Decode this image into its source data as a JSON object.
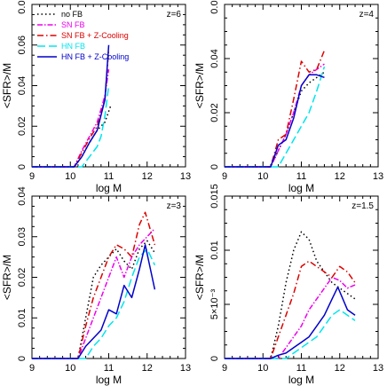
{
  "chart_data": [
    {
      "type": "line",
      "label": "z=6",
      "xlabel": "log M",
      "ylabel": "<SFR>/M",
      "xlim": [
        9,
        13
      ],
      "ylim": [
        0,
        0.08
      ],
      "xticks": [
        "9",
        "10",
        "11",
        "12",
        "13"
      ],
      "yticks": [
        {
          "v": 0,
          "t": "0"
        },
        {
          "v": 0.02,
          "t": "0.02"
        },
        {
          "v": 0.04,
          "t": "0.04"
        },
        {
          "v": 0.06,
          "t": "0.06"
        },
        {
          "v": 0.08,
          "t": "0.08"
        }
      ],
      "show_legend": true,
      "series": [
        {
          "name": "no FB",
          "points": [
            [
              9,
              0
            ],
            [
              10.1,
              0
            ],
            [
              10.3,
              0.005
            ],
            [
              10.5,
              0.012
            ],
            [
              10.7,
              0.018
            ],
            [
              10.9,
              0.022
            ],
            [
              11.05,
              0.03
            ]
          ]
        },
        {
          "name": "SN FB",
          "points": [
            [
              9,
              0
            ],
            [
              10.1,
              0
            ],
            [
              10.3,
              0.008
            ],
            [
              10.5,
              0.015
            ],
            [
              10.7,
              0.022
            ],
            [
              10.9,
              0.035
            ],
            [
              11.0,
              0.048
            ]
          ]
        },
        {
          "name": "SN FB + Z-Cooling",
          "points": [
            [
              9,
              0
            ],
            [
              10.1,
              0
            ],
            [
              10.3,
              0.007
            ],
            [
              10.5,
              0.014
            ],
            [
              10.7,
              0.02
            ],
            [
              10.9,
              0.033
            ],
            [
              11.0,
              0.058
            ]
          ]
        },
        {
          "name": "HN FB",
          "points": [
            [
              9,
              0
            ],
            [
              10.3,
              0
            ],
            [
              10.5,
              0.005
            ],
            [
              10.7,
              0.01
            ],
            [
              10.8,
              0.015
            ],
            [
              10.9,
              0.025
            ],
            [
              11.0,
              0.04
            ]
          ]
        },
        {
          "name": "HN FB + Z-Cooling",
          "points": [
            [
              9,
              0
            ],
            [
              10.1,
              0
            ],
            [
              10.3,
              0.005
            ],
            [
              10.5,
              0.012
            ],
            [
              10.7,
              0.018
            ],
            [
              10.9,
              0.033
            ],
            [
              11.0,
              0.06
            ]
          ]
        }
      ]
    },
    {
      "type": "line",
      "label": "z=4",
      "xlabel": "log M",
      "ylabel": "<SFR>/M",
      "xlim": [
        9,
        13
      ],
      "ylim": [
        0,
        0.06
      ],
      "xticks": [
        "9",
        "10",
        "11",
        "12",
        "13"
      ],
      "yticks": [
        {
          "v": 0,
          "t": "0"
        },
        {
          "v": 0.02,
          "t": "0.02"
        },
        {
          "v": 0.04,
          "t": "0.04"
        },
        {
          "v": 0.06,
          "t": "0.06"
        }
      ],
      "show_legend": false,
      "series": [
        {
          "name": "no FB",
          "points": [
            [
              9,
              0
            ],
            [
              10.2,
              0
            ],
            [
              10.4,
              0.006
            ],
            [
              10.6,
              0.012
            ],
            [
              10.8,
              0.02
            ],
            [
              11.0,
              0.028
            ],
            [
              11.2,
              0.031
            ],
            [
              11.4,
              0.033
            ],
            [
              11.6,
              0.035
            ]
          ]
        },
        {
          "name": "SN FB",
          "points": [
            [
              9,
              0
            ],
            [
              10.2,
              0
            ],
            [
              10.4,
              0.006
            ],
            [
              10.6,
              0.012
            ],
            [
              10.8,
              0.02
            ],
            [
              11.0,
              0.03
            ],
            [
              11.2,
              0.034
            ],
            [
              11.4,
              0.036
            ],
            [
              11.6,
              0.038
            ]
          ]
        },
        {
          "name": "SN FB + Z-Cooling",
          "points": [
            [
              9,
              0
            ],
            [
              10.2,
              0
            ],
            [
              10.4,
              0.01
            ],
            [
              10.6,
              0.012
            ],
            [
              10.8,
              0.025
            ],
            [
              11.0,
              0.039
            ],
            [
              11.2,
              0.035
            ],
            [
              11.4,
              0.036
            ],
            [
              11.6,
              0.043
            ]
          ]
        },
        {
          "name": "HN FB",
          "points": [
            [
              9,
              0
            ],
            [
              10.4,
              0
            ],
            [
              10.6,
              0.005
            ],
            [
              10.8,
              0.01
            ],
            [
              11.0,
              0.015
            ],
            [
              11.2,
              0.02
            ],
            [
              11.4,
              0.028
            ],
            [
              11.6,
              0.037
            ]
          ]
        },
        {
          "name": "HN FB + Z-Cooling",
          "points": [
            [
              9,
              0
            ],
            [
              10.2,
              0
            ],
            [
              10.4,
              0.008
            ],
            [
              10.6,
              0.01
            ],
            [
              10.8,
              0.018
            ],
            [
              11.0,
              0.03
            ],
            [
              11.2,
              0.034
            ],
            [
              11.4,
              0.034
            ],
            [
              11.6,
              0.033
            ]
          ]
        }
      ]
    },
    {
      "type": "line",
      "label": "z=3",
      "xlabel": "log M",
      "ylabel": "<SFR>/M",
      "xlim": [
        9,
        13
      ],
      "ylim": [
        0,
        0.04
      ],
      "xticks": [
        "9",
        "10",
        "11",
        "12",
        "13"
      ],
      "yticks": [
        {
          "v": 0,
          "t": "0"
        },
        {
          "v": 0.01,
          "t": "0.01"
        },
        {
          "v": 0.02,
          "t": "0.02"
        },
        {
          "v": 0.03,
          "t": "0.03"
        },
        {
          "v": 0.04,
          "t": "0.04"
        }
      ],
      "show_legend": false,
      "series": [
        {
          "name": "no FB",
          "points": [
            [
              9,
              0
            ],
            [
              10.2,
              0
            ],
            [
              10.4,
              0.01
            ],
            [
              10.6,
              0.02
            ],
            [
              10.8,
              0.023
            ],
            [
              11.0,
              0.025
            ],
            [
              11.2,
              0.027
            ],
            [
              11.4,
              0.024
            ],
            [
              11.6,
              0.022
            ],
            [
              11.8,
              0.027
            ],
            [
              12.0,
              0.029
            ],
            [
              12.2,
              0.026
            ]
          ]
        },
        {
          "name": "SN FB",
          "points": [
            [
              9,
              0
            ],
            [
              10.2,
              0
            ],
            [
              10.4,
              0.005
            ],
            [
              10.6,
              0.01
            ],
            [
              10.8,
              0.015
            ],
            [
              11.0,
              0.02
            ],
            [
              11.2,
              0.025
            ],
            [
              11.4,
              0.02
            ],
            [
              11.6,
              0.025
            ],
            [
              11.8,
              0.028
            ],
            [
              12.0,
              0.03
            ],
            [
              12.2,
              0.032
            ]
          ]
        },
        {
          "name": "SN FB + Z-Cooling",
          "points": [
            [
              9,
              0
            ],
            [
              10.2,
              0
            ],
            [
              10.4,
              0.008
            ],
            [
              10.6,
              0.015
            ],
            [
              10.8,
              0.02
            ],
            [
              11.0,
              0.025
            ],
            [
              11.2,
              0.028
            ],
            [
              11.4,
              0.027
            ],
            [
              11.6,
              0.025
            ],
            [
              11.8,
              0.033
            ],
            [
              11.95,
              0.036
            ],
            [
              12.2,
              0.028
            ]
          ]
        },
        {
          "name": "HN FB",
          "points": [
            [
              9,
              0
            ],
            [
              10.4,
              0
            ],
            [
              10.6,
              0.003
            ],
            [
              10.8,
              0.005
            ],
            [
              11.0,
              0.008
            ],
            [
              11.2,
              0.01
            ],
            [
              11.4,
              0.014
            ],
            [
              11.6,
              0.02
            ],
            [
              11.8,
              0.025
            ],
            [
              12.0,
              0.027
            ],
            [
              12.2,
              0.023
            ]
          ]
        },
        {
          "name": "HN FB + Z-Cooling",
          "points": [
            [
              9,
              0
            ],
            [
              10.2,
              0
            ],
            [
              10.4,
              0.003
            ],
            [
              10.6,
              0.005
            ],
            [
              10.8,
              0.007
            ],
            [
              11.0,
              0.012
            ],
            [
              11.2,
              0.011
            ],
            [
              11.4,
              0.018
            ],
            [
              11.6,
              0.015
            ],
            [
              11.8,
              0.022
            ],
            [
              11.95,
              0.028
            ],
            [
              12.2,
              0.017
            ]
          ]
        }
      ]
    },
    {
      "type": "line",
      "label": "z=1.5",
      "xlabel": "log M",
      "ylabel": "<SFR>/M",
      "xlim": [
        9,
        13
      ],
      "ylim": [
        0,
        0.015
      ],
      "xticks": [
        "9",
        "10",
        "11",
        "12",
        "13"
      ],
      "yticks": [
        {
          "v": 0,
          "t": "0"
        },
        {
          "v": 0.005,
          "t": "5×10⁻³"
        },
        {
          "v": 0.01,
          "t": "0.01"
        },
        {
          "v": 0.015,
          "t": "0.015"
        }
      ],
      "show_legend": false,
      "series": [
        {
          "name": "no FB",
          "points": [
            [
              9,
              0
            ],
            [
              10.2,
              0
            ],
            [
              10.4,
              0.003
            ],
            [
              10.6,
              0.007
            ],
            [
              10.8,
              0.01
            ],
            [
              11.0,
              0.0117
            ],
            [
              11.2,
              0.011
            ],
            [
              11.4,
              0.009
            ],
            [
              11.6,
              0.008
            ],
            [
              11.8,
              0.007
            ],
            [
              12.0,
              0.0065
            ],
            [
              12.2,
              0.006
            ],
            [
              12.4,
              0.0055
            ]
          ]
        },
        {
          "name": "SN FB",
          "points": [
            [
              9,
              0
            ],
            [
              10.4,
              0
            ],
            [
              10.6,
              0.001
            ],
            [
              10.8,
              0.002
            ],
            [
              11.0,
              0.003
            ],
            [
              11.2,
              0.0045
            ],
            [
              11.4,
              0.0055
            ],
            [
              11.6,
              0.0065
            ],
            [
              11.8,
              0.0075
            ],
            [
              12.0,
              0.0072
            ],
            [
              12.2,
              0.0065
            ],
            [
              12.4,
              0.0068
            ]
          ]
        },
        {
          "name": "SN FB + Z-Cooling",
          "points": [
            [
              9,
              0
            ],
            [
              10.2,
              0
            ],
            [
              10.4,
              0.002
            ],
            [
              10.6,
              0.004
            ],
            [
              10.8,
              0.006
            ],
            [
              11.0,
              0.0085
            ],
            [
              11.2,
              0.009
            ],
            [
              11.4,
              0.0085
            ],
            [
              11.6,
              0.008
            ],
            [
              11.8,
              0.0075
            ],
            [
              12.0,
              0.0085
            ],
            [
              12.2,
              0.008
            ],
            [
              12.4,
              0.007
            ]
          ]
        },
        {
          "name": "HN FB",
          "points": [
            [
              9,
              0
            ],
            [
              10.6,
              0
            ],
            [
              10.8,
              0.0005
            ],
            [
              11.0,
              0.001
            ],
            [
              11.2,
              0.0015
            ],
            [
              11.4,
              0.002
            ],
            [
              11.6,
              0.003
            ],
            [
              11.8,
              0.004
            ],
            [
              12.0,
              0.0045
            ],
            [
              12.2,
              0.004
            ],
            [
              12.4,
              0.0035
            ]
          ]
        },
        {
          "name": "HN FB + Z-Cooling",
          "points": [
            [
              9,
              0
            ],
            [
              10.2,
              0
            ],
            [
              10.4,
              0.0003
            ],
            [
              10.6,
              0.0005
            ],
            [
              10.8,
              0.001
            ],
            [
              11.0,
              0.0015
            ],
            [
              11.2,
              0.002
            ],
            [
              11.4,
              0.003
            ],
            [
              11.6,
              0.004
            ],
            [
              11.8,
              0.0055
            ],
            [
              11.95,
              0.0066
            ],
            [
              12.2,
              0.0045
            ],
            [
              12.4,
              0.004
            ]
          ]
        }
      ]
    }
  ],
  "series_styles": [
    {
      "name": "no FB",
      "color": "#000000",
      "dash": "1.5,3",
      "text_color": "#000000"
    },
    {
      "name": "SN FB",
      "color": "#ee00ee",
      "dash": "6,2,1.5,2",
      "text_color": "#ee00ee"
    },
    {
      "name": "SN FB + Z-Cooling",
      "color": "#dd0000",
      "dash": "7,3,1.5,3",
      "text_color": "#dd0000"
    },
    {
      "name": "HN FB",
      "color": "#00e5ee",
      "dash": "9,4",
      "text_color": "#00e5ee"
    },
    {
      "name": "HN FB + Z-Cooling",
      "color": "#0000cc",
      "dash": "",
      "text_color": "#0000cc"
    }
  ]
}
